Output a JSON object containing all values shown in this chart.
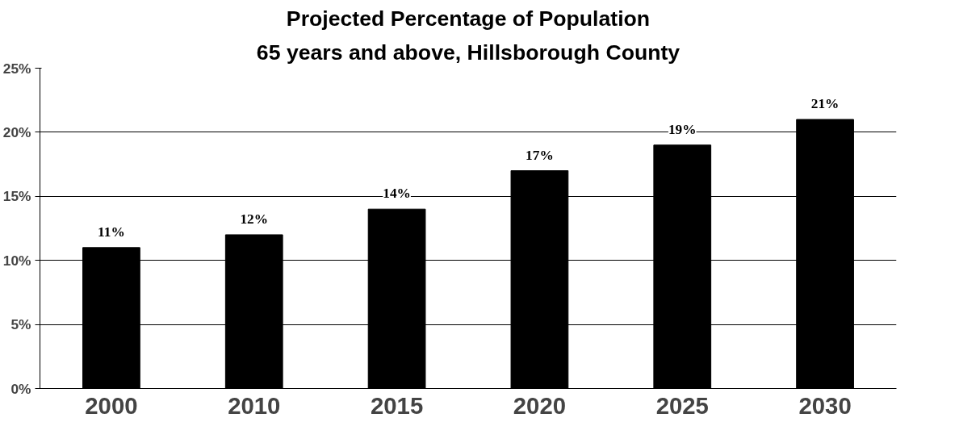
{
  "chart_data": {
    "type": "bar",
    "title": "Projected Percentage of Population",
    "subtitle": "65 years and above, Hillsborough County",
    "categories": [
      "2000",
      "2010",
      "2015",
      "2020",
      "2025",
      "2030"
    ],
    "values": [
      11,
      12,
      14,
      17,
      19,
      21
    ],
    "value_labels": [
      "11%",
      "12%",
      "14%",
      "17%",
      "19%",
      "21%"
    ],
    "color": "#000000",
    "ylim": [
      0,
      25
    ],
    "yticks": [
      {
        "value": 0,
        "label": "0%"
      },
      {
        "value": 5,
        "label": "5%"
      },
      {
        "value": 10,
        "label": "10%"
      },
      {
        "value": 15,
        "label": "15%"
      },
      {
        "value": 20,
        "label": "20%"
      },
      {
        "value": 25,
        "label": "25%"
      }
    ],
    "grid": "y"
  }
}
